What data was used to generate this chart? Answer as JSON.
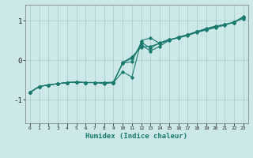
{
  "xlabel": "Humidex (Indice chaleur)",
  "bg_color": "#cce8e8",
  "grid_color": "#aacfcf",
  "line_color": "#1a7a6e",
  "xlim": [
    -0.5,
    23.5
  ],
  "ylim": [
    -1.6,
    1.4
  ],
  "yticks": [
    -1,
    0,
    1
  ],
  "xticks": [
    0,
    1,
    2,
    3,
    4,
    5,
    6,
    7,
    8,
    9,
    10,
    11,
    12,
    13,
    14,
    15,
    16,
    17,
    18,
    19,
    20,
    21,
    22,
    23
  ],
  "line1_x": [
    0,
    1,
    2,
    3,
    4,
    5,
    6,
    7,
    8,
    9,
    10,
    11,
    12,
    13,
    14,
    15,
    16,
    17,
    18,
    19,
    20,
    21,
    22,
    23
  ],
  "line1_y": [
    -0.82,
    -0.67,
    -0.63,
    -0.6,
    -0.57,
    -0.56,
    -0.57,
    -0.57,
    -0.57,
    -0.57,
    -0.06,
    0.08,
    0.33,
    0.35,
    0.42,
    0.5,
    0.58,
    0.64,
    0.72,
    0.78,
    0.84,
    0.9,
    0.95,
    1.08
  ],
  "line2_x": [
    0,
    1,
    2,
    3,
    4,
    5,
    6,
    7,
    8,
    9,
    10,
    11,
    12,
    13,
    14,
    15,
    16,
    17,
    18,
    19,
    20,
    21,
    22,
    23
  ],
  "line2_y": [
    -0.82,
    -0.67,
    -0.63,
    -0.6,
    -0.57,
    -0.56,
    -0.57,
    -0.57,
    -0.57,
    -0.57,
    -0.07,
    0.05,
    0.38,
    0.23,
    0.35,
    0.5,
    0.58,
    0.64,
    0.72,
    0.78,
    0.84,
    0.9,
    0.95,
    1.08
  ],
  "line3_x": [
    0,
    1,
    2,
    3,
    4,
    5,
    6,
    7,
    8,
    9,
    10,
    11,
    12,
    13,
    14,
    15,
    16,
    17,
    18,
    19,
    20,
    21,
    22,
    23
  ],
  "line3_y": [
    -0.82,
    -0.67,
    -0.63,
    -0.6,
    -0.57,
    -0.56,
    -0.57,
    -0.57,
    -0.57,
    -0.56,
    -0.08,
    -0.04,
    0.45,
    0.3,
    0.44,
    0.52,
    0.56,
    0.62,
    0.7,
    0.76,
    0.82,
    0.88,
    0.97,
    1.05
  ],
  "line4_x": [
    0,
    1,
    2,
    3,
    4,
    5,
    6,
    7,
    8,
    9
  ],
  "line4_y": [
    -0.82,
    -0.67,
    -0.63,
    -0.6,
    -0.57,
    -0.56,
    -0.57,
    -0.57,
    -0.6,
    -0.57
  ],
  "line5_x": [
    9,
    10,
    11,
    12,
    13,
    14,
    15,
    16,
    17,
    18,
    19,
    20,
    21,
    22,
    23
  ],
  "line5_y": [
    -0.57,
    -0.3,
    -0.43,
    0.49,
    0.56,
    0.42,
    0.52,
    0.56,
    0.64,
    0.72,
    0.8,
    0.86,
    0.9,
    0.96,
    1.1
  ]
}
